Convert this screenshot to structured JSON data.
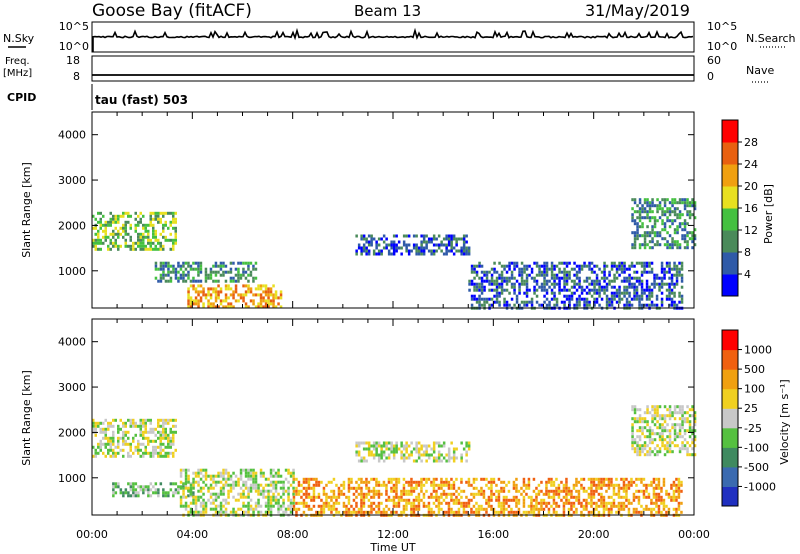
{
  "header": {
    "site": "Goose Bay (fitACF)",
    "beam": "Beam 13",
    "date": "31/May/2019"
  },
  "summary_panels": {
    "nsky_label": "N.Sky",
    "nsearch_label": "N.Search",
    "nsky_ticks": [
      "10^5",
      "10^0"
    ],
    "nsearch_ticks": [
      "10^5",
      "10^0"
    ],
    "freq_label_line1": "Freq.",
    "freq_label_line2": "[MHz]",
    "freq_ticks": [
      "18",
      "8"
    ],
    "nave_label": "Nave",
    "nave_ticks": [
      "60",
      "0"
    ],
    "cpid_label": "CPID",
    "cpid_value": "tau (fast) 503"
  },
  "chart_data": [
    {
      "type": "heatmap",
      "name": "power",
      "ylabel": "Slant Range [km]",
      "xlabel": "",
      "yticks": [
        1000,
        2000,
        3000,
        4000
      ],
      "ylim": [
        180,
        4500
      ],
      "colorbar_label": "Power [dB]",
      "colorbar_ticks": [
        "4",
        "8",
        "12",
        "16",
        "20",
        "24",
        "28"
      ],
      "colors": [
        "#0000ff",
        "#2f5aa8",
        "#4a8a5a",
        "#44c040",
        "#e8e020",
        "#f0a010",
        "#e86010",
        "#ff0000"
      ],
      "regions": [
        {
          "t": [
            0.0,
            3.3
          ],
          "r": [
            1500,
            2300
          ],
          "level": 3
        },
        {
          "t": [
            2.5,
            6.5
          ],
          "r": [
            800,
            1200
          ],
          "level": 2
        },
        {
          "t": [
            3.8,
            7.5
          ],
          "r": [
            200,
            700
          ],
          "level": 5
        },
        {
          "t": [
            10.5,
            15.0
          ],
          "r": [
            1400,
            1800
          ],
          "level": 1
        },
        {
          "t": [
            15.0,
            23.5
          ],
          "r": [
            200,
            1200
          ],
          "level": 1
        },
        {
          "t": [
            21.5,
            24.0
          ],
          "r": [
            1500,
            2600
          ],
          "level": 2
        }
      ]
    },
    {
      "type": "heatmap",
      "name": "velocity",
      "ylabel": "Slant Range [km]",
      "xlabel": "Time UT",
      "yticks": [
        1000,
        2000,
        3000,
        4000
      ],
      "ylim": [
        180,
        4500
      ],
      "xticks": [
        "00:00",
        "04:00",
        "08:00",
        "12:00",
        "16:00",
        "20:00",
        "00:00"
      ],
      "xlim": [
        0,
        24
      ],
      "colorbar_label": "Velocity [m s⁻¹]",
      "colorbar_ticks": [
        "1000",
        "500",
        "100",
        "25",
        "-25",
        "-100",
        "-500",
        "-1000"
      ],
      "colors": [
        "#2030c0",
        "#3a6ab0",
        "#3f8a60",
        "#55c040",
        "#c8c8c8",
        "#f0d020",
        "#f0a010",
        "#f06010",
        "#ff0000"
      ],
      "regions": [
        {
          "t": [
            0.0,
            3.3
          ],
          "r": [
            1500,
            2300
          ],
          "level": 4
        },
        {
          "t": [
            0.8,
            4.0
          ],
          "r": [
            600,
            900
          ],
          "level": 3
        },
        {
          "t": [
            3.5,
            8.0
          ],
          "r": [
            200,
            1200
          ],
          "level": 4
        },
        {
          "t": [
            10.5,
            15.0
          ],
          "r": [
            1400,
            1800
          ],
          "level": 4
        },
        {
          "t": [
            8.0,
            23.5
          ],
          "r": [
            200,
            1000
          ],
          "level": 6
        },
        {
          "t": [
            21.5,
            24.0
          ],
          "r": [
            1500,
            2600
          ],
          "level": 4
        }
      ]
    }
  ]
}
